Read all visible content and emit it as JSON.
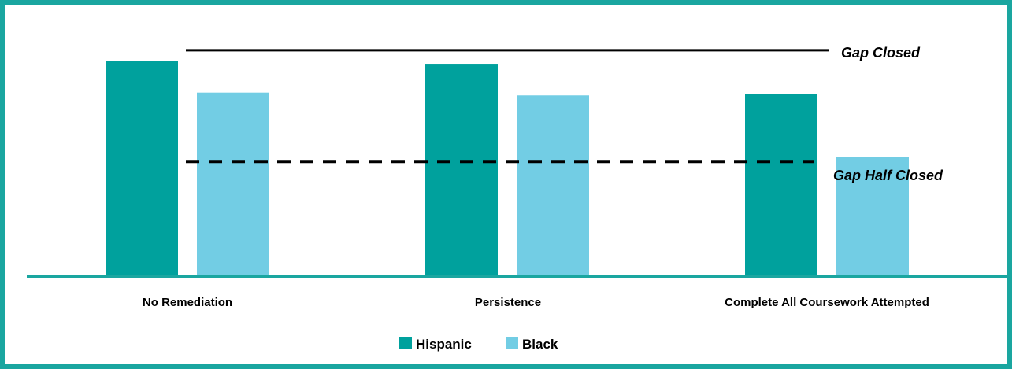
{
  "chart_data": {
    "type": "bar",
    "categories": [
      "No Remediation",
      "Persistence",
      "Complete All Coursework Attempted"
    ],
    "series": [
      {
        "name": "Hispanic",
        "color": "#00a19d",
        "values": [
          100,
          98.7,
          84.7
        ]
      },
      {
        "name": "Black",
        "color": "#72cde4",
        "values": [
          85.3,
          84,
          55.3
        ]
      }
    ],
    "reference_lines": [
      {
        "label": "Gap Closed",
        "value": 105,
        "style": "solid"
      },
      {
        "label": "Gap Half Closed",
        "value": 53.3,
        "style": "dashed"
      }
    ],
    "ylim": [
      0,
      117
    ],
    "grid": false,
    "legend": "bottom-center",
    "axis_color": "#1aa6a0"
  }
}
